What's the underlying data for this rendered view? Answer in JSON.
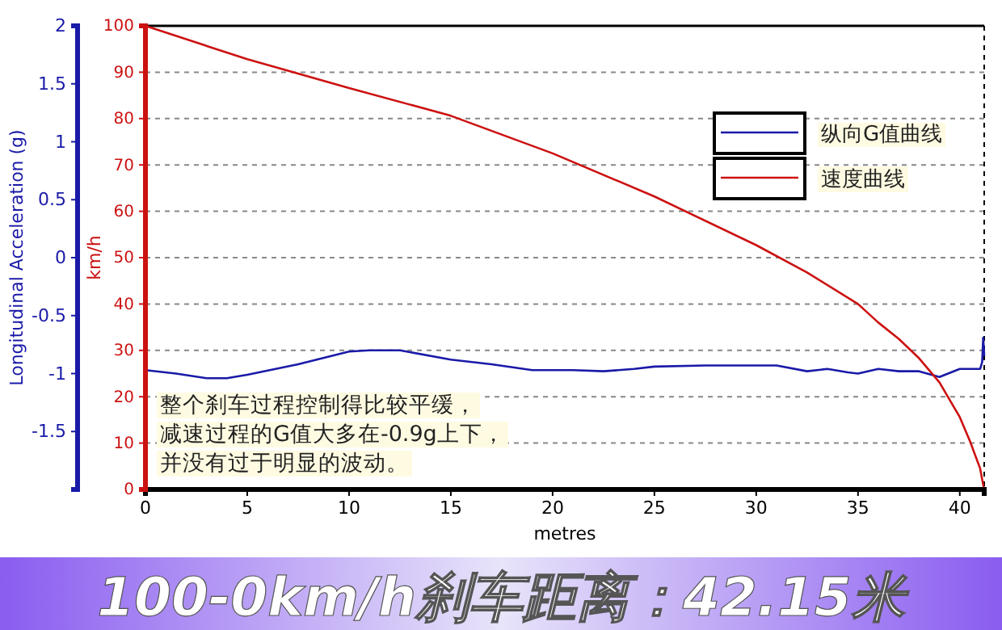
{
  "chart_data": {
    "type": "line",
    "title": "100-0km/h刹车距离：42.15米",
    "xlabel": "metres",
    "ylabel": "km/h",
    "y2label": "Longitudinal Acceleration (g)",
    "xlim": [
      0,
      41.2
    ],
    "xticks": [
      0,
      5,
      10,
      15,
      20,
      25,
      30,
      35,
      40
    ],
    "ylim": [
      0,
      100
    ],
    "yticks": [
      0,
      10,
      20,
      30,
      40,
      50,
      60,
      70,
      80,
      90,
      100
    ],
    "y2lim": [
      -2,
      2
    ],
    "y2ticks": [
      -1.5,
      -1,
      -0.5,
      0,
      0.5,
      1,
      1.5,
      2
    ],
    "grid": "y",
    "legend": "top right",
    "annotations": [
      "整个刹车过程控制得比较平缓，",
      "减速过程的G值大多在-0.9g上下，",
      "并没有过于明显的波动。"
    ],
    "series": [
      {
        "name": "纵向G值曲线",
        "color": "#1a1aa8",
        "axis": "y2",
        "x": [
          0,
          1.5,
          3,
          4,
          5,
          7.5,
          10,
          11,
          12.5,
          15,
          17,
          19,
          21,
          22.5,
          24,
          25,
          27.5,
          30,
          31,
          32.5,
          33.5,
          34.5,
          35,
          36,
          37,
          38,
          39,
          40,
          41,
          41.1,
          41.15,
          41.2
        ],
        "values": [
          -0.97,
          -1.0,
          -1.04,
          -1.04,
          -1.01,
          -0.92,
          -0.81,
          -0.8,
          -0.8,
          -0.88,
          -0.92,
          -0.97,
          -0.97,
          -0.98,
          -0.96,
          -0.94,
          -0.93,
          -0.93,
          -0.93,
          -0.98,
          -0.96,
          -0.99,
          -1.0,
          -0.96,
          -0.98,
          -0.98,
          -1.03,
          -0.96,
          -0.96,
          -0.9,
          -0.69,
          -0.85
        ]
      },
      {
        "name": "速度曲线",
        "color": "#cc1111",
        "x": [
          0,
          5,
          10,
          15,
          20,
          25,
          30,
          32.5,
          35,
          36,
          37,
          38,
          39,
          40,
          40.5,
          41,
          41.15,
          41.2
        ],
        "values": [
          100,
          92.8,
          86.6,
          80.6,
          72.5,
          63.2,
          52.7,
          46.8,
          40,
          36,
          32.5,
          28.3,
          23.1,
          15.6,
          10.4,
          4.5,
          1,
          0
        ]
      }
    ]
  }
}
